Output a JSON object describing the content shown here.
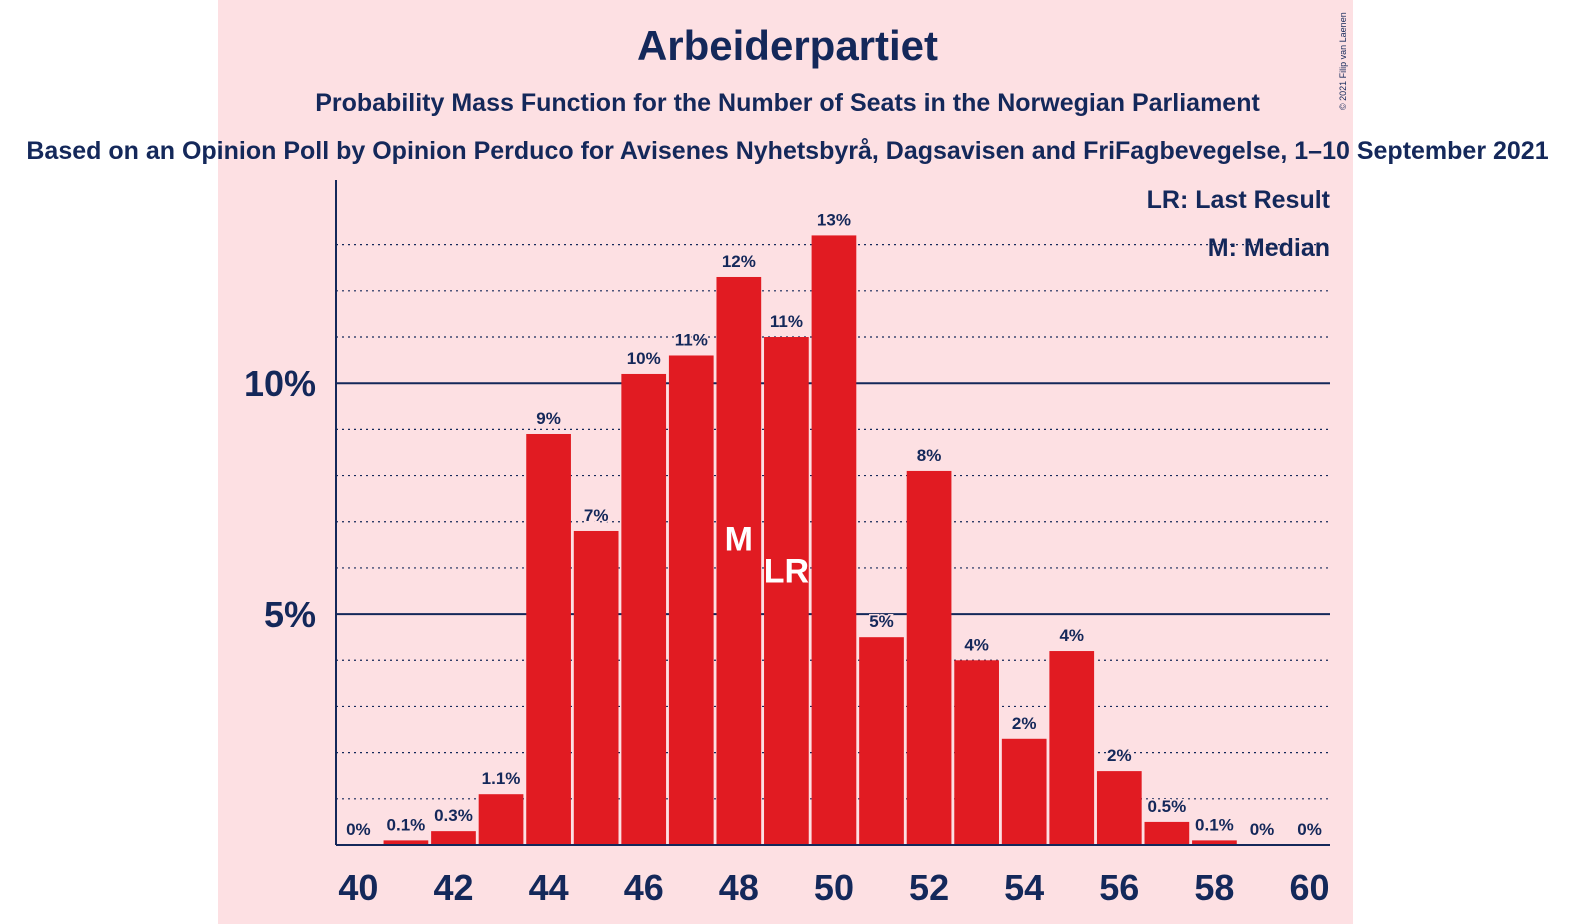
{
  "header": {
    "title": "Arbeiderpartiet",
    "subtitle": "Probability Mass Function for the Number of Seats in the Norwegian Parliament",
    "source": "Based on an Opinion Poll by Opinion Perduco for Avisenes Nyhetsbyrå, Dagsavisen and FriFagbevegelse, 1–10 September 2021",
    "copyright": "© 2021 Filip van Laenen"
  },
  "legend": {
    "last_result": "LR: Last Result",
    "median": "M: Median"
  },
  "colors": {
    "bar": "#e11b22",
    "text": "#14285a",
    "panel": "#fde0e3"
  },
  "chart_data": {
    "type": "bar",
    "x": [
      40,
      41,
      42,
      43,
      44,
      45,
      46,
      47,
      48,
      49,
      50,
      51,
      52,
      53,
      54,
      55,
      56,
      57,
      58,
      59,
      60
    ],
    "values": [
      0,
      0.1,
      0.3,
      1.1,
      8.9,
      6.8,
      10.2,
      10.6,
      12.3,
      11.0,
      13.2,
      4.5,
      8.1,
      4.0,
      2.3,
      4.2,
      1.6,
      0.5,
      0.1,
      0,
      0
    ],
    "value_labels": [
      "0%",
      "0.1%",
      "0.3%",
      "1.1%",
      "9%",
      "7%",
      "10%",
      "11%",
      "12%",
      "11%",
      "13%",
      "5%",
      "8%",
      "4%",
      "2%",
      "4%",
      "2%",
      "0.5%",
      "0.1%",
      "0%",
      "0%"
    ],
    "x_tick_values": [
      40,
      42,
      44,
      46,
      48,
      50,
      52,
      54,
      56,
      58,
      60
    ],
    "x_tick_labels": [
      "40",
      "42",
      "44",
      "46",
      "48",
      "50",
      "52",
      "54",
      "56",
      "58",
      "60"
    ],
    "y_tick_values": [
      5,
      10
    ],
    "y_tick_labels": [
      "5%",
      "10%"
    ],
    "ylim": [
      0,
      14.4
    ],
    "grid": true,
    "legend_position": "top-right",
    "markers": [
      {
        "x": 48,
        "label": "M"
      },
      {
        "x": 49,
        "label": "LR"
      }
    ]
  }
}
